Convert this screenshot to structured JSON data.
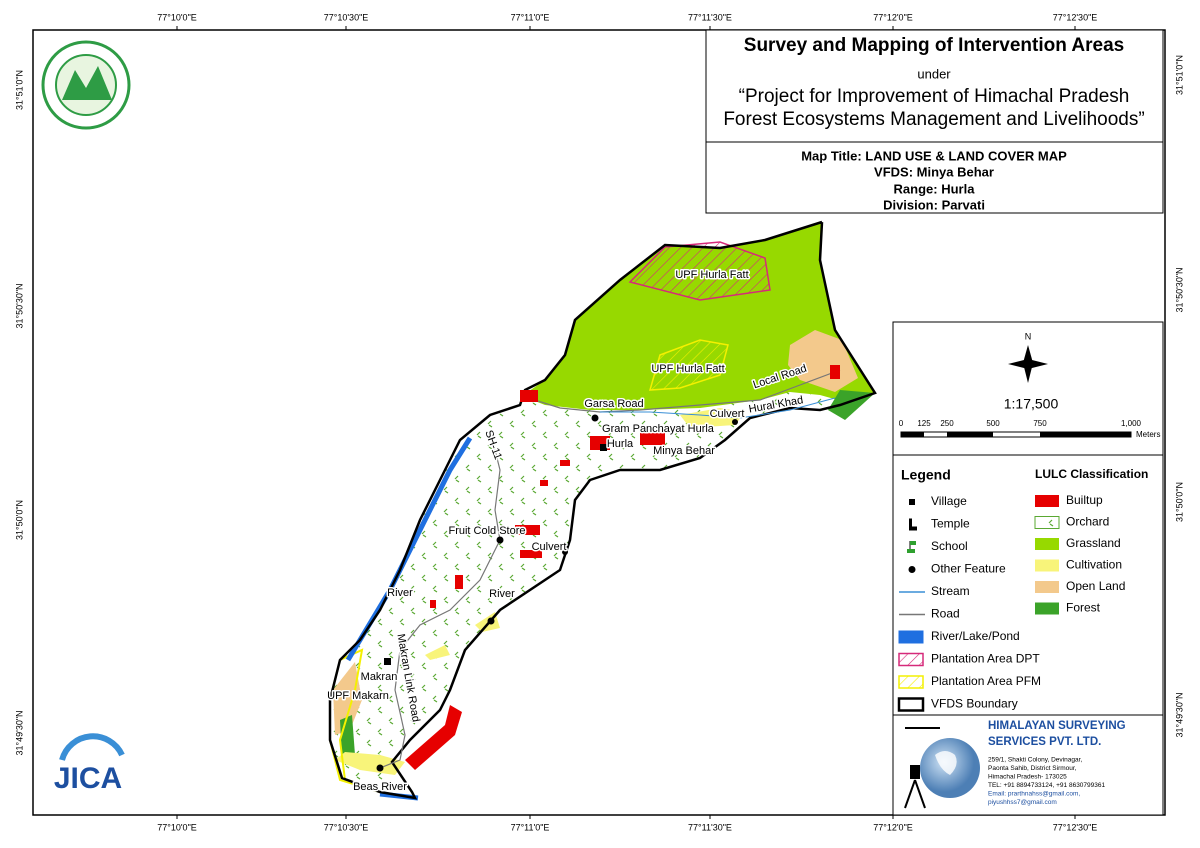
{
  "coordinates": {
    "top": [
      "77°10'0\"E",
      "77°10'30\"E",
      "77°11'0\"E",
      "77°11'30\"E",
      "77°12'0\"E",
      "77°12'30\"E"
    ],
    "bottom": [
      "77°10'0\"E",
      "77°10'30\"E",
      "77°11'0\"E",
      "77°11'30\"E",
      "77°12'0\"E",
      "77°12'30\"E"
    ],
    "left": [
      "31°51'0\"N",
      "31°50'30\"N",
      "31°50'0\"N",
      "31°49'30\"N"
    ],
    "right": [
      "31°51'0\"N",
      "31°50'30\"N",
      "31°50'0\"N",
      "31°49'30\"N"
    ]
  },
  "title_box": {
    "title": "Survey and Mapping of Intervention Areas",
    "under": "under",
    "project_line1": "“Project for Improvement of Himachal Pradesh",
    "project_line2": "Forest Ecosystems Management and Livelihoods”"
  },
  "map_info": {
    "map_title": "Map Title: LAND USE & LAND COVER MAP",
    "vfds": "VFDS: Minya Behar",
    "range": "Range: Hurla",
    "division": "Division: Parvati"
  },
  "map_labels": [
    "UPF Hurla Fatt",
    "UPF Hurla Fatt",
    "Local Road",
    "Garsa Road",
    "Culvert",
    "Hural Khad",
    "Gram Panchayat Hurla",
    "Hurla",
    "Minya Behar",
    "SH-11",
    "Fruit Cold Store",
    "Culvert",
    "River",
    "River",
    "Makran",
    "Makran Link Road",
    "UPF Makarn",
    "Beas River"
  ],
  "scale": {
    "north": "N",
    "ratio": "1:17,500",
    "ticks": [
      "0",
      "125",
      "250",
      "500",
      "750",
      "1,000"
    ],
    "unit": "Meters"
  },
  "legend": {
    "title": "Legend",
    "items": [
      "Village",
      "Temple",
      "School",
      "Other Feature",
      "Stream",
      "Road",
      "River/Lake/Pond",
      "Plantation Area DPT",
      "Plantation Area PFM",
      "VFDS Boundary"
    ]
  },
  "lulc": {
    "title": "LULC Classification",
    "items": [
      "Builtup",
      "Orchard",
      "Grassland",
      "Cultivation",
      "Open Land",
      "Forest"
    ]
  },
  "company": {
    "name_line1": "HIMALAYAN SURVEYING",
    "name_line2": "SERVICES PVT. LTD.",
    "address": [
      "259/1, Shakti Colony, Devinagar,",
      "Paonta Sahib, District Sirmour,",
      "Himachal Pradesh- 173025",
      "TEL: +91 8894733124, +91 8630799361",
      "Email: prarthnahss@gmail.com,",
      "piyushhss7@gmail.com"
    ]
  },
  "logos": {
    "jica": "JICA"
  }
}
